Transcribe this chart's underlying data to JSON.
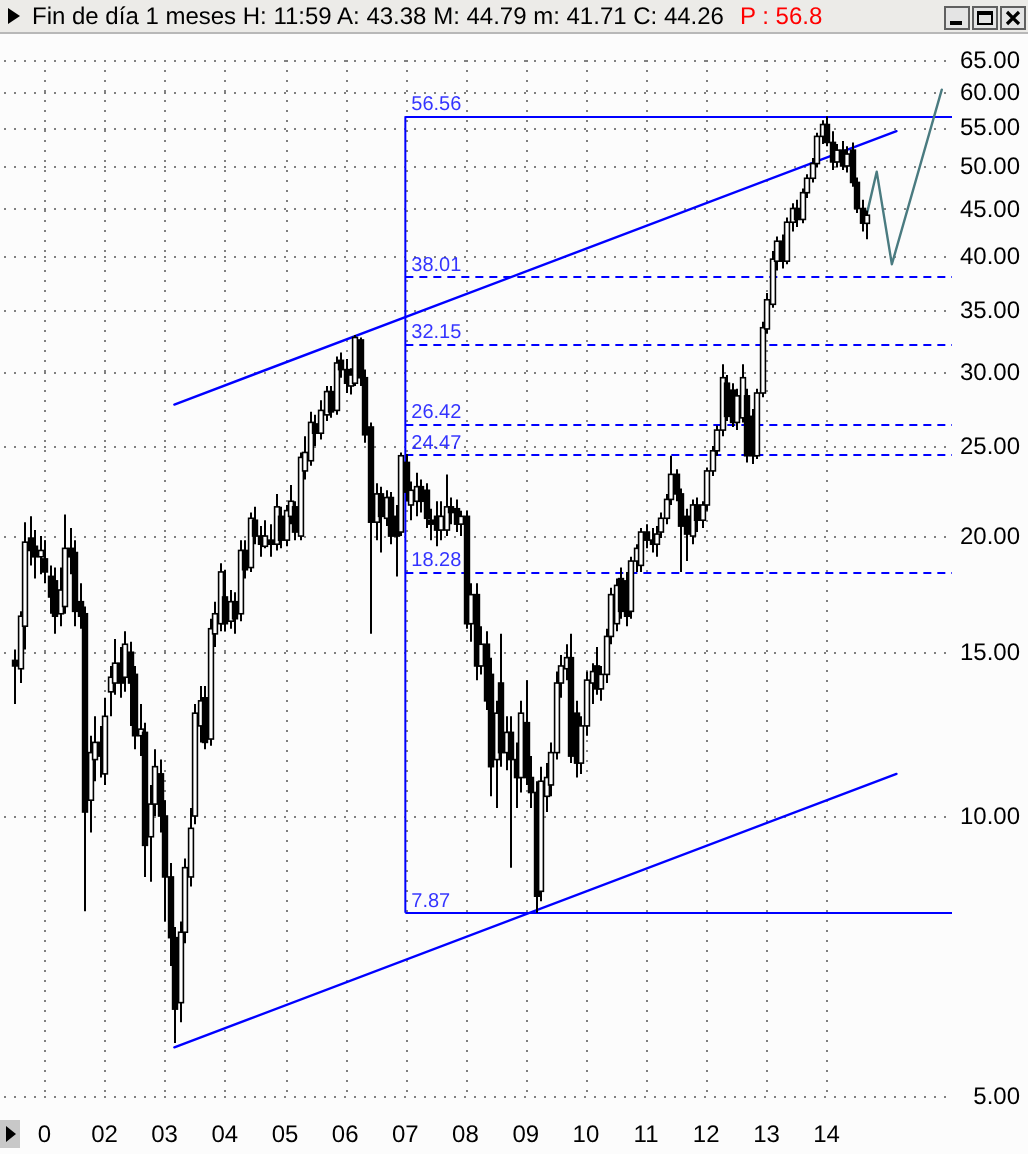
{
  "chart_data": {
    "type": "candlestick",
    "title": "Fin de día 1 meses H: 11:59 A: 43.38 M: 44.79 m: 41.71 C: 44.26",
    "annotations": [
      "P : 56.8"
    ],
    "color": "#000000",
    "x": [
      "2000-07",
      "2000-08",
      "2000-09",
      "2000-10",
      "2000-11",
      "2000-12",
      "2001-01",
      "2001-02",
      "2001-03",
      "2001-04",
      "2001-05",
      "2001-06",
      "2001-07",
      "2001-08",
      "2001-09",
      "2001-10",
      "2001-11",
      "2001-12",
      "2002-01",
      "2002-02",
      "2002-03",
      "2002-04",
      "2002-05",
      "2002-06",
      "2002-07",
      "2002-08",
      "2002-09",
      "2002-10",
      "2002-11",
      "2002-12",
      "2003-01",
      "2003-02",
      "2003-03",
      "2003-04",
      "2003-05",
      "2003-06",
      "2003-07",
      "2003-08",
      "2003-09",
      "2003-10",
      "2003-11",
      "2003-12",
      "2004-01",
      "2004-02",
      "2004-03",
      "2004-04",
      "2004-05",
      "2004-06",
      "2004-07",
      "2004-08",
      "2004-09",
      "2004-10",
      "2004-11",
      "2004-12",
      "2005-01",
      "2005-02",
      "2005-03",
      "2005-04",
      "2005-05",
      "2005-06",
      "2005-07",
      "2005-08",
      "2005-09",
      "2005-10",
      "2005-11",
      "2005-12",
      "2006-01",
      "2006-02",
      "2006-03",
      "2006-04",
      "2006-05",
      "2006-06",
      "2006-07",
      "2006-08",
      "2006-09",
      "2006-10",
      "2006-11",
      "2006-12",
      "2007-01",
      "2007-02",
      "2007-03",
      "2007-04",
      "2007-05",
      "2007-06",
      "2007-07",
      "2007-08",
      "2007-09",
      "2007-10",
      "2007-11",
      "2007-12",
      "2008-01",
      "2008-02",
      "2008-03",
      "2008-04",
      "2008-05",
      "2008-06",
      "2008-07",
      "2008-08",
      "2008-09",
      "2008-10",
      "2008-11",
      "2008-12",
      "2009-01",
      "2009-02",
      "2009-03",
      "2009-04",
      "2009-05",
      "2009-06",
      "2009-07",
      "2009-08",
      "2009-09",
      "2009-10",
      "2009-11",
      "2009-12",
      "2010-01",
      "2010-02",
      "2010-03",
      "2010-04",
      "2010-05",
      "2010-06",
      "2010-07",
      "2010-08",
      "2010-09",
      "2010-10",
      "2010-11",
      "2010-12",
      "2011-01",
      "2011-02",
      "2011-03",
      "2011-04",
      "2011-05",
      "2011-06",
      "2011-07",
      "2011-08",
      "2011-09",
      "2011-10",
      "2011-11",
      "2011-12",
      "2012-01",
      "2012-02",
      "2012-03",
      "2012-04",
      "2012-05",
      "2012-06",
      "2012-07",
      "2012-08",
      "2012-09",
      "2012-10",
      "2012-11",
      "2012-12",
      "2013-01",
      "2013-02",
      "2013-03",
      "2013-04",
      "2013-05",
      "2013-06",
      "2013-07",
      "2013-08",
      "2013-09",
      "2013-10",
      "2013-11",
      "2013-12",
      "2014-01",
      "2014-02",
      "2014-03",
      "2014-04",
      "2014-05",
      "2014-06",
      "2014-07",
      "2014-08",
      "2014-09"
    ],
    "ohlc": [
      [
        14.7,
        15.1,
        13.2,
        14.5
      ],
      [
        14.4,
        16.6,
        13.9,
        16.4
      ],
      [
        16.0,
        20.7,
        15.1,
        19.7
      ],
      [
        19.9,
        21.0,
        18.6,
        19.3
      ],
      [
        19.5,
        20.3,
        18.0,
        19.0
      ],
      [
        19.0,
        20.0,
        18.2,
        19.3
      ],
      [
        18.9,
        19.8,
        17.8,
        18.3
      ],
      [
        18.1,
        18.6,
        16.5,
        17.2
      ],
      [
        17.9,
        18.5,
        15.7,
        16.4
      ],
      [
        16.5,
        18.5,
        16.0,
        17.5
      ],
      [
        16.8,
        21.1,
        16.5,
        19.4
      ],
      [
        19.4,
        20.4,
        18.2,
        19.0
      ],
      [
        19.2,
        19.8,
        16.0,
        16.6
      ],
      [
        17.0,
        17.8,
        15.9,
        16.4
      ],
      [
        16.5,
        16.8,
        7.9,
        10.1
      ],
      [
        10.4,
        12.2,
        9.6,
        11.7
      ],
      [
        11.5,
        12.8,
        10.9,
        12.0
      ],
      [
        12.0,
        12.5,
        11.0,
        11.6
      ],
      [
        11.1,
        13.4,
        10.8,
        12.8
      ],
      [
        13.6,
        14.5,
        12.8,
        14.1
      ],
      [
        13.9,
        15.5,
        13.5,
        14.6
      ],
      [
        14.6,
        15.2,
        13.4,
        13.9
      ],
      [
        14.1,
        15.8,
        13.6,
        15.3
      ],
      [
        15.0,
        15.4,
        12.5,
        13.9
      ],
      [
        14.2,
        14.5,
        11.8,
        12.2
      ],
      [
        12.2,
        13.2,
        11.6,
        12.4
      ],
      [
        12.3,
        12.6,
        8.6,
        9.3
      ],
      [
        9.5,
        10.8,
        8.5,
        10.3
      ],
      [
        10.3,
        11.8,
        10.0,
        11.3
      ],
      [
        11.1,
        11.5,
        9.6,
        10.0
      ],
      [
        10.0,
        10.4,
        7.7,
        8.6
      ],
      [
        8.6,
        8.9,
        6.9,
        7.4
      ],
      [
        7.4,
        7.6,
        5.7,
        6.2
      ],
      [
        6.3,
        7.7,
        6.0,
        7.5
      ],
      [
        7.5,
        9.0,
        7.3,
        8.8
      ],
      [
        8.6,
        10.2,
        8.4,
        9.7
      ],
      [
        10.0,
        13.2,
        9.8,
        12.9
      ],
      [
        12.5,
        13.8,
        12.0,
        13.3
      ],
      [
        13.4,
        13.8,
        11.8,
        12.0
      ],
      [
        12.1,
        16.3,
        11.9,
        15.9
      ],
      [
        15.7,
        17.0,
        15.2,
        16.5
      ],
      [
        16.1,
        18.7,
        15.8,
        18.3
      ],
      [
        17.2,
        18.4,
        15.8,
        16.1
      ],
      [
        16.2,
        17.5,
        15.9,
        17.0
      ],
      [
        17.0,
        17.4,
        15.7,
        16.3
      ],
      [
        16.5,
        19.8,
        16.2,
        19.3
      ],
      [
        19.3,
        19.8,
        18.0,
        18.4
      ],
      [
        18.5,
        21.2,
        18.3,
        20.9
      ],
      [
        20.8,
        21.5,
        19.6,
        20.0
      ],
      [
        20.0,
        20.5,
        19.0,
        19.6
      ],
      [
        19.5,
        20.8,
        19.4,
        20.0
      ],
      [
        19.8,
        20.6,
        19.0,
        19.6
      ],
      [
        19.6,
        22.2,
        19.3,
        21.5
      ],
      [
        21.0,
        21.5,
        19.4,
        19.8
      ],
      [
        19.8,
        21.6,
        19.5,
        21.3
      ],
      [
        21.0,
        22.7,
        20.6,
        21.8
      ],
      [
        21.5,
        21.8,
        19.8,
        20.2
      ],
      [
        20.0,
        24.6,
        19.8,
        24.3
      ],
      [
        23.5,
        25.6,
        23.0,
        24.6
      ],
      [
        24.1,
        27.2,
        23.8,
        26.5
      ],
      [
        26.4,
        27.0,
        25.0,
        25.8
      ],
      [
        25.8,
        28.0,
        25.4,
        27.3
      ],
      [
        27.0,
        29.0,
        26.6,
        28.6
      ],
      [
        28.6,
        29.0,
        26.8,
        27.2
      ],
      [
        27.3,
        31.2,
        27.0,
        30.7
      ],
      [
        30.9,
        31.5,
        29.6,
        30.2
      ],
      [
        30.2,
        31.0,
        28.5,
        29.2
      ],
      [
        29.0,
        30.3,
        28.4,
        29.8
      ],
      [
        29.2,
        32.9,
        29.0,
        32.7
      ],
      [
        32.5,
        32.7,
        29.0,
        29.6
      ],
      [
        29.6,
        30.2,
        25.2,
        25.7
      ],
      [
        26.2,
        26.5,
        15.7,
        20.7
      ],
      [
        20.7,
        22.8,
        19.8,
        22.2
      ],
      [
        22.2,
        22.6,
        19.2,
        21.0
      ],
      [
        20.9,
        22.4,
        20.5,
        22.0
      ],
      [
        22.0,
        22.3,
        19.6,
        20.0
      ],
      [
        21.0,
        21.6,
        18.1,
        20.0
      ],
      [
        20.2,
        24.6,
        20.0,
        24.4
      ],
      [
        24.0,
        24.5,
        21.8,
        22.3
      ],
      [
        21.6,
        22.9,
        20.8,
        22.4
      ],
      [
        21.8,
        23.4,
        21.0,
        22.6
      ],
      [
        22.6,
        23.0,
        21.2,
        21.8
      ],
      [
        22.4,
        22.8,
        20.4,
        20.9
      ],
      [
        20.8,
        21.4,
        19.8,
        20.6
      ],
      [
        21.0,
        21.8,
        19.5,
        20.3
      ],
      [
        20.3,
        21.8,
        19.8,
        21.0
      ],
      [
        20.3,
        23.3,
        20.0,
        21.5
      ],
      [
        21.5,
        22.0,
        20.6,
        21.2
      ],
      [
        21.4,
        21.9,
        20.2,
        20.6
      ],
      [
        20.6,
        21.3,
        20.0,
        21.0
      ],
      [
        21.0,
        21.3,
        15.9,
        16.1
      ],
      [
        16.1,
        17.8,
        15.4,
        17.3
      ],
      [
        17.3,
        17.8,
        14.0,
        14.5
      ],
      [
        14.5,
        16.0,
        14.2,
        15.3
      ],
      [
        15.3,
        15.8,
        13.0,
        13.3
      ],
      [
        14.2,
        14.8,
        10.5,
        11.3
      ],
      [
        11.5,
        13.3,
        10.2,
        12.9
      ],
      [
        13.9,
        15.7,
        11.3,
        11.7
      ],
      [
        11.7,
        12.8,
        11.2,
        12.3
      ],
      [
        12.3,
        12.8,
        8.8,
        11.5
      ],
      [
        11.5,
        12.0,
        10.2,
        11.0
      ],
      [
        11.0,
        13.3,
        10.6,
        12.9
      ],
      [
        12.6,
        14.0,
        10.8,
        11.0
      ],
      [
        11.0,
        11.6,
        10.2,
        10.6
      ],
      [
        10.6,
        10.9,
        7.87,
        8.2
      ],
      [
        8.3,
        11.3,
        8.1,
        10.9
      ],
      [
        10.5,
        11.4,
        10.1,
        11.0
      ],
      [
        10.8,
        12.0,
        10.5,
        11.7
      ],
      [
        11.7,
        14.3,
        11.5,
        13.9
      ],
      [
        13.9,
        14.9,
        13.4,
        14.5
      ],
      [
        14.4,
        15.3,
        14.0,
        14.8
      ],
      [
        14.8,
        15.7,
        11.4,
        11.6
      ],
      [
        12.9,
        13.3,
        11.0,
        11.4
      ],
      [
        11.4,
        12.8,
        11.1,
        12.5
      ],
      [
        12.5,
        14.3,
        12.2,
        14.0
      ],
      [
        13.9,
        14.6,
        13.2,
        14.3
      ],
      [
        14.5,
        15.2,
        13.5,
        13.7
      ],
      [
        13.7,
        14.5,
        13.3,
        14.2
      ],
      [
        14.2,
        15.9,
        13.9,
        15.6
      ],
      [
        15.6,
        17.6,
        15.3,
        17.3
      ],
      [
        16.1,
        18.0,
        15.8,
        17.7
      ],
      [
        18.0,
        18.5,
        16.3,
        16.6
      ],
      [
        17.9,
        18.3,
        16.0,
        16.4
      ],
      [
        16.6,
        19.0,
        16.3,
        18.8
      ],
      [
        18.8,
        19.6,
        18.3,
        19.4
      ],
      [
        18.6,
        20.4,
        18.3,
        20.2
      ],
      [
        20.2,
        20.6,
        19.4,
        19.8
      ],
      [
        19.8,
        20.4,
        19.2,
        19.6
      ],
      [
        19.6,
        20.5,
        19.0,
        20.1
      ],
      [
        20.2,
        21.2,
        19.9,
        20.9
      ],
      [
        20.9,
        22.2,
        20.6,
        21.9
      ],
      [
        21.9,
        24.4,
        21.6,
        23.3
      ],
      [
        23.3,
        23.6,
        21.8,
        22.2
      ],
      [
        22.2,
        22.5,
        18.3,
        20.5
      ],
      [
        21.0,
        21.4,
        18.8,
        20.1
      ],
      [
        20.0,
        21.9,
        19.6,
        21.6
      ],
      [
        21.6,
        22.0,
        20.2,
        20.8
      ],
      [
        20.8,
        21.8,
        20.4,
        21.6
      ],
      [
        21.6,
        23.7,
        21.3,
        23.5
      ],
      [
        23.5,
        25.0,
        23.2,
        24.7
      ],
      [
        24.7,
        26.3,
        24.4,
        26.0
      ],
      [
        26.0,
        30.6,
        25.6,
        29.6
      ],
      [
        29.2,
        29.8,
        26.6,
        26.9
      ],
      [
        28.7,
        29.2,
        26.2,
        26.5
      ],
      [
        26.5,
        28.8,
        26.0,
        28.3
      ],
      [
        26.8,
        30.6,
        26.5,
        29.6
      ],
      [
        28.3,
        28.8,
        24.0,
        24.4
      ],
      [
        26.9,
        27.4,
        23.9,
        24.4
      ],
      [
        24.4,
        28.8,
        24.2,
        28.5
      ],
      [
        28.5,
        34.0,
        28.2,
        33.5
      ],
      [
        33.4,
        36.5,
        33.0,
        35.9
      ],
      [
        35.5,
        40.5,
        35.2,
        39.7
      ],
      [
        39.5,
        42.0,
        38.6,
        41.5
      ],
      [
        41.5,
        42.2,
        38.8,
        39.5
      ],
      [
        39.5,
        44.0,
        39.2,
        43.5
      ],
      [
        43.5,
        45.6,
        42.5,
        45.0
      ],
      [
        45.0,
        46.0,
        43.0,
        43.8
      ],
      [
        43.8,
        47.3,
        43.4,
        46.8
      ],
      [
        46.8,
        49.0,
        46.2,
        48.5
      ],
      [
        48.5,
        51.0,
        48.0,
        50.3
      ],
      [
        50.3,
        54.3,
        49.8,
        53.8
      ],
      [
        53.8,
        56.0,
        52.8,
        55.4
      ],
      [
        55.4,
        56.56,
        52.5,
        53.0
      ],
      [
        53.0,
        54.5,
        49.5,
        50.5
      ],
      [
        50.5,
        52.8,
        49.8,
        52.0
      ],
      [
        52.0,
        53.2,
        49.5,
        50.0
      ],
      [
        50.0,
        52.5,
        49.2,
        51.5
      ],
      [
        52.0,
        53.0,
        47.5,
        48.0
      ],
      [
        48.0,
        48.6,
        44.5,
        45.0
      ],
      [
        45.0,
        46.0,
        42.5,
        43.4
      ],
      [
        43.38,
        44.79,
        41.71,
        44.26
      ]
    ],
    "series": [
      {
        "type": "line",
        "color": "#0000ff",
        "x": [
          "2003-03",
          "2015-03"
        ],
        "values": [
          27.7,
          54.5
        ]
      },
      {
        "type": "line",
        "color": "#0000ff",
        "x": [
          "2003-03",
          "2015-03"
        ],
        "values": [
          5.64,
          11.1
        ]
      },
      {
        "type": "line",
        "color": "#4a7b80",
        "x": [
          "2014-09",
          "2014-11",
          "2015-02",
          "2015-12"
        ],
        "values": [
          44.3,
          49.3,
          39.2,
          60.4
        ]
      }
    ],
    "ref_lines": [
      {
        "axis": "x",
        "value": "2007-01",
        "color": "#0000ff",
        "line_style": "solid"
      },
      {
        "axis": "y",
        "value": 56.56,
        "label": "56.56",
        "color": "#0000ff",
        "line_style": "solid"
      },
      {
        "axis": "y",
        "value": 38.01,
        "label": "38.01",
        "color": "#0000ff",
        "line_style": "dashed"
      },
      {
        "axis": "y",
        "value": 32.15,
        "label": "32.15",
        "color": "#0000ff",
        "line_style": "dashed"
      },
      {
        "axis": "y",
        "value": 26.42,
        "label": "26.42",
        "color": "#0000ff",
        "line_style": "dashed"
      },
      {
        "axis": "y",
        "value": 24.47,
        "label": "24.47",
        "color": "#0000ff",
        "line_style": "dashed"
      },
      {
        "axis": "y",
        "value": 18.28,
        "label": "18.28",
        "color": "#0000ff",
        "line_style": "dashed"
      },
      {
        "axis": "y",
        "value": 7.87,
        "label": "7.87",
        "color": "#0000ff",
        "line_style": "solid"
      }
    ],
    "xlim": [
      "2000-05",
      "2016-02"
    ],
    "xticks": [
      {
        "value": "2001-01",
        "label": "0"
      },
      {
        "value": "2002-01",
        "label": "02"
      },
      {
        "value": "2003-01",
        "label": "03"
      },
      {
        "value": "2004-01",
        "label": "04"
      },
      {
        "value": "2005-01",
        "label": "05"
      },
      {
        "value": "2006-01",
        "label": "06"
      },
      {
        "value": "2007-01",
        "label": "07"
      },
      {
        "value": "2008-01",
        "label": "08"
      },
      {
        "value": "2009-01",
        "label": "09"
      },
      {
        "value": "2010-01",
        "label": "10"
      },
      {
        "value": "2011-01",
        "label": "11"
      },
      {
        "value": "2012-01",
        "label": "12"
      },
      {
        "value": "2013-01",
        "label": "13"
      },
      {
        "value": "2014-01",
        "label": "14"
      }
    ],
    "ylim": [
      5,
      65
    ],
    "yticks": [
      {
        "value": 5,
        "label": "5.00"
      },
      {
        "value": 10,
        "label": "10.00"
      },
      {
        "value": 15,
        "label": "15.00"
      },
      {
        "value": 20,
        "label": "20.00"
      },
      {
        "value": 25,
        "label": "25.00"
      },
      {
        "value": 30,
        "label": "30.00"
      },
      {
        "value": 35,
        "label": "35.00"
      },
      {
        "value": 40,
        "label": "40.00"
      },
      {
        "value": 45,
        "label": "45.00"
      },
      {
        "value": 50,
        "label": "50.00"
      },
      {
        "value": 55,
        "label": "55.00"
      },
      {
        "value": 60,
        "label": "60.00"
      },
      {
        "value": 65,
        "label": "65.00"
      }
    ],
    "log": "y",
    "grid": true
  }
}
